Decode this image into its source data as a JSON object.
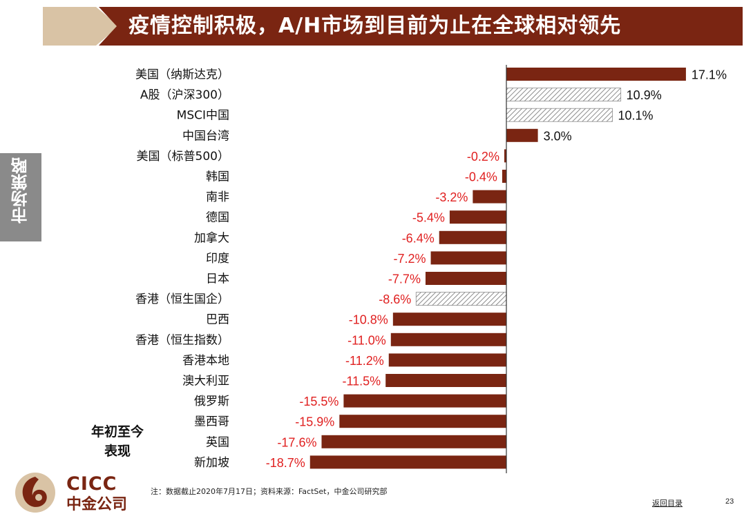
{
  "header": {
    "title": "疫情控制积极，A/H市场到目前为止在全球相对领先"
  },
  "side_tab": {
    "label": "市场策略"
  },
  "caption": {
    "line1": "年初至今",
    "line2": "表现"
  },
  "chart_data": {
    "type": "bar",
    "orientation": "horizontal",
    "categories": [
      "美国（纳斯达克）",
      "A股（沪深300）",
      "MSCI中国",
      "中国台湾",
      "美国（标普500）",
      "韩国",
      "南非",
      "德国",
      "加拿大",
      "印度",
      "日本",
      "香港（恒生国企）",
      "巴西",
      "香港（恒生指数）",
      "香港本地",
      "澳大利亚",
      "俄罗斯",
      "墨西哥",
      "英国",
      "新加坡"
    ],
    "values": [
      17.1,
      10.9,
      10.1,
      3.0,
      -0.2,
      -0.4,
      -3.2,
      -5.4,
      -6.4,
      -7.2,
      -7.7,
      -8.6,
      -10.8,
      -11.0,
      -11.2,
      -11.5,
      -15.5,
      -15.9,
      -17.6,
      -18.7
    ],
    "value_labels": [
      "17.1%",
      "10.9%",
      "10.1%",
      "3.0%",
      "-0.2%",
      "-0.4%",
      "-3.2%",
      "-5.4%",
      "-6.4%",
      "-7.2%",
      "-7.7%",
      "-8.6%",
      "-10.8%",
      "-11.0%",
      "-11.2%",
      "-11.5%",
      "-15.5%",
      "-15.9%",
      "-17.6%",
      "-18.7%"
    ],
    "hatched": [
      false,
      true,
      true,
      false,
      false,
      false,
      false,
      false,
      false,
      false,
      false,
      true,
      false,
      false,
      false,
      false,
      false,
      false,
      false,
      false
    ],
    "unit": "%",
    "xlim": [
      -20,
      20
    ],
    "colors": {
      "bar": "#7a2512",
      "hatch": "#8c8c8c",
      "positive_label": "#111111",
      "negative_label": "#e02020"
    },
    "grid": false,
    "legend": "none"
  },
  "logo": {
    "en": "CICC",
    "cn": "中金公司"
  },
  "footer": {
    "note": "注：数据截止2020年7月17日；资料来源：FactSet，中金公司研究部",
    "back_link": "返回目录",
    "page_number": "23"
  }
}
